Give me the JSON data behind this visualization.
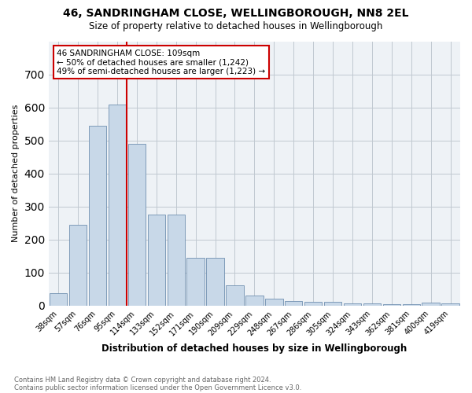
{
  "title1": "46, SANDRINGHAM CLOSE, WELLINGBOROUGH, NN8 2EL",
  "title2": "Size of property relative to detached houses in Wellingborough",
  "xlabel": "Distribution of detached houses by size in Wellingborough",
  "ylabel": "Number of detached properties",
  "categories": [
    "38sqm",
    "57sqm",
    "76sqm",
    "95sqm",
    "114sqm",
    "133sqm",
    "152sqm",
    "171sqm",
    "190sqm",
    "209sqm",
    "229sqm",
    "248sqm",
    "267sqm",
    "286sqm",
    "305sqm",
    "324sqm",
    "343sqm",
    "362sqm",
    "381sqm",
    "400sqm",
    "419sqm"
  ],
  "values": [
    38,
    245,
    545,
    608,
    490,
    275,
    275,
    145,
    145,
    62,
    30,
    20,
    15,
    12,
    12,
    7,
    7,
    5,
    5,
    10,
    7
  ],
  "bar_color": "#c8d8e8",
  "bar_edge_color": "#7090b0",
  "vline_x_index": 4,
  "vline_color": "#cc0000",
  "annotation_title": "46 SANDRINGHAM CLOSE: 109sqm",
  "annotation_line1": "← 50% of detached houses are smaller (1,242)",
  "annotation_line2": "49% of semi-detached houses are larger (1,223) →",
  "annotation_box_color": "#cc0000",
  "annotation_bg": "#ffffff",
  "ylim": [
    0,
    800
  ],
  "yticks": [
    0,
    100,
    200,
    300,
    400,
    500,
    600,
    700,
    800
  ],
  "grid_color": "#c0c8d0",
  "bg_color": "#eef2f6",
  "footnote1": "Contains HM Land Registry data © Crown copyright and database right 2024.",
  "footnote2": "Contains public sector information licensed under the Open Government Licence v3.0."
}
